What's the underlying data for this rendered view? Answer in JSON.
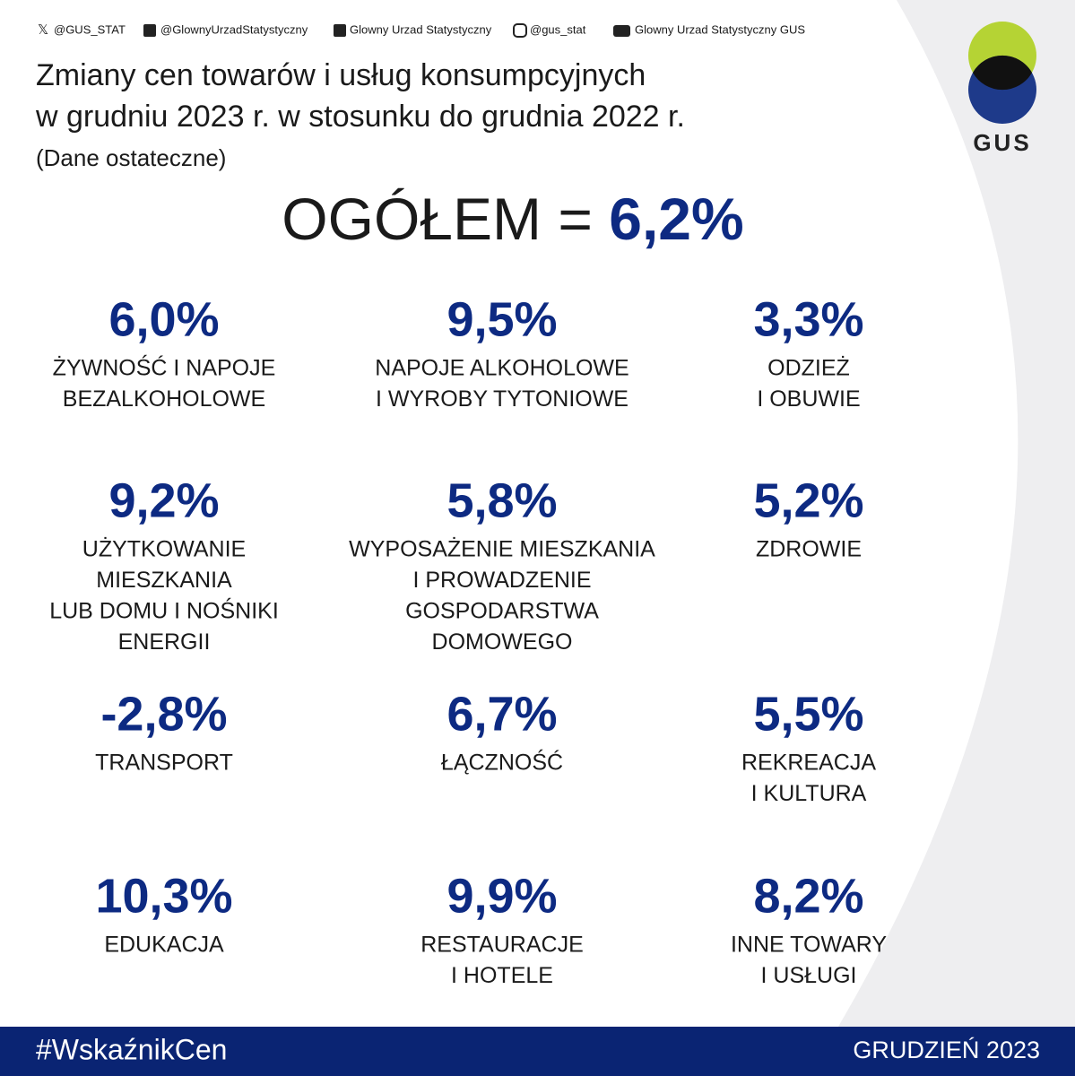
{
  "social": [
    "@GUS_STAT",
    "@GlownyUrzadStatystyczny",
    "Glowny Urzad Statystyczny",
    "@gus_stat",
    "Glowny Urzad Statystyczny GUS"
  ],
  "logo": "GUS",
  "title": [
    "Zmiany cen towarów i usług konsumpcyjnych",
    "w grudniu 2023 r. w stosunku do grudnia 2022 r."
  ],
  "subtitle": "(Dane ostateczne)",
  "total": {
    "label": "OGÓŁEM =",
    "value": "6,2%"
  },
  "items": [
    {
      "value": "6,0%",
      "label": [
        "ŻYWNOŚĆ I NAPOJE",
        "BEZALKOHOLOWE"
      ]
    },
    {
      "value": "9,5%",
      "label": [
        "NAPOJE ALKOHOLOWE",
        "I WYROBY TYTONIOWE"
      ]
    },
    {
      "value": "3,3%",
      "label": [
        "ODZIEŻ",
        "I OBUWIE"
      ]
    },
    {
      "value": "9,2%",
      "label": [
        "UŻYTKOWANIE",
        "MIESZKANIA",
        "LUB DOMU I NOŚNIKI",
        "ENERGII"
      ]
    },
    {
      "value": "5,8%",
      "label": [
        "WYPOSAŻENIE MIESZKANIA",
        "I PROWADZENIE",
        "GOSPODARSTWA",
        "DOMOWEGO"
      ]
    },
    {
      "value": "5,2%",
      "label": [
        "ZDROWIE"
      ]
    },
    {
      "value": "-2,8%",
      "label": [
        "TRANSPORT"
      ]
    },
    {
      "value": "6,7%",
      "label": [
        "ŁĄCZNOŚĆ"
      ]
    },
    {
      "value": "5,5%",
      "label": [
        "REKREACJA",
        "I KULTURA"
      ]
    },
    {
      "value": "10,3%",
      "label": [
        "EDUKACJA"
      ]
    },
    {
      "value": "9,9%",
      "label": [
        "RESTAURACJE",
        "I HOTELE"
      ]
    },
    {
      "value": "8,2%",
      "label": [
        "INNE TOWARY",
        "I USŁUGI"
      ]
    }
  ],
  "footer": {
    "hashtag": "#WskaźnikCen",
    "date": "GRUDZIEŃ 2023"
  }
}
